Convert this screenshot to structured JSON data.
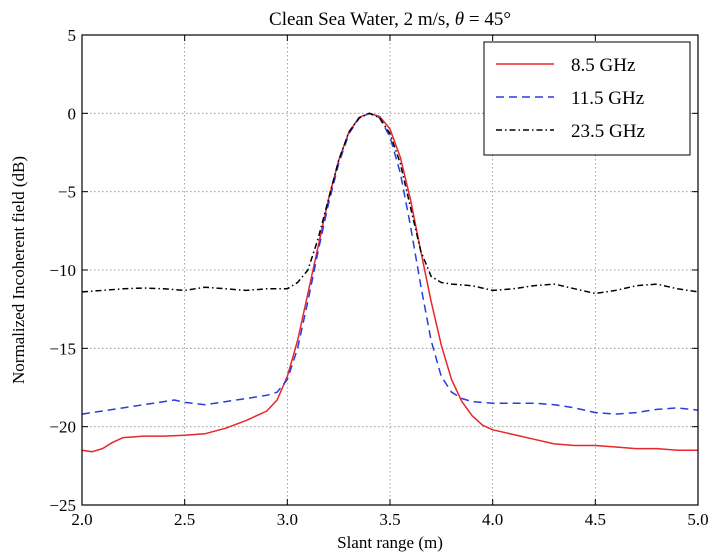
{
  "chart_data": {
    "type": "line",
    "title_prefix": "Clean Sea Water, 2 m/s, ",
    "title_symbol": "θ",
    "title_suffix": " = 45°",
    "xlabel": "Slant range (m)",
    "ylabel": "Normalized Incoherent field (dB)",
    "xlim": [
      2.0,
      5.0
    ],
    "ylim": [
      -25,
      5
    ],
    "xticks": [
      "2.0",
      "2.5",
      "3.0",
      "3.5",
      "4.0",
      "4.5",
      "5.0"
    ],
    "yticks": [
      "5",
      "0",
      "−5",
      "−10",
      "−15",
      "−20",
      "−25"
    ],
    "grid": true,
    "legend_position": "top-right",
    "series": [
      {
        "name": "8.5 GHz",
        "color": "#e8262b",
        "style": "solid",
        "points": [
          [
            2.0,
            -21.5
          ],
          [
            2.05,
            -21.6
          ],
          [
            2.1,
            -21.4
          ],
          [
            2.15,
            -21.0
          ],
          [
            2.2,
            -20.7
          ],
          [
            2.3,
            -20.6
          ],
          [
            2.4,
            -20.6
          ],
          [
            2.5,
            -20.55
          ],
          [
            2.6,
            -20.45
          ],
          [
            2.7,
            -20.1
          ],
          [
            2.8,
            -19.6
          ],
          [
            2.9,
            -19.0
          ],
          [
            2.95,
            -18.3
          ],
          [
            3.0,
            -16.8
          ],
          [
            3.05,
            -14.5
          ],
          [
            3.1,
            -11.5
          ],
          [
            3.15,
            -8.5
          ],
          [
            3.2,
            -5.5
          ],
          [
            3.25,
            -3.0
          ],
          [
            3.3,
            -1.2
          ],
          [
            3.35,
            -0.25
          ],
          [
            3.4,
            0.0
          ],
          [
            3.45,
            -0.2
          ],
          [
            3.5,
            -1.0
          ],
          [
            3.55,
            -2.8
          ],
          [
            3.6,
            -5.5
          ],
          [
            3.65,
            -8.8
          ],
          [
            3.7,
            -12.0
          ],
          [
            3.75,
            -14.8
          ],
          [
            3.8,
            -17.0
          ],
          [
            3.85,
            -18.4
          ],
          [
            3.9,
            -19.3
          ],
          [
            3.95,
            -19.9
          ],
          [
            4.0,
            -20.2
          ],
          [
            4.1,
            -20.5
          ],
          [
            4.2,
            -20.8
          ],
          [
            4.3,
            -21.1
          ],
          [
            4.4,
            -21.2
          ],
          [
            4.5,
            -21.2
          ],
          [
            4.6,
            -21.3
          ],
          [
            4.7,
            -21.4
          ],
          [
            4.8,
            -21.4
          ],
          [
            4.9,
            -21.5
          ],
          [
            5.0,
            -21.5
          ]
        ]
      },
      {
        "name": "11.5 GHz",
        "color": "#2a3cde",
        "style": "dashed",
        "points": [
          [
            2.0,
            -19.2
          ],
          [
            2.1,
            -19.0
          ],
          [
            2.2,
            -18.8
          ],
          [
            2.3,
            -18.6
          ],
          [
            2.4,
            -18.4
          ],
          [
            2.45,
            -18.3
          ],
          [
            2.5,
            -18.45
          ],
          [
            2.6,
            -18.6
          ],
          [
            2.7,
            -18.4
          ],
          [
            2.8,
            -18.2
          ],
          [
            2.9,
            -18.0
          ],
          [
            2.95,
            -17.8
          ],
          [
            3.0,
            -17.0
          ],
          [
            3.05,
            -15.0
          ],
          [
            3.1,
            -12.0
          ],
          [
            3.15,
            -8.8
          ],
          [
            3.2,
            -5.8
          ],
          [
            3.25,
            -3.2
          ],
          [
            3.3,
            -1.3
          ],
          [
            3.35,
            -0.3
          ],
          [
            3.4,
            0.0
          ],
          [
            3.45,
            -0.3
          ],
          [
            3.5,
            -1.5
          ],
          [
            3.55,
            -3.8
          ],
          [
            3.6,
            -7.2
          ],
          [
            3.65,
            -11.0
          ],
          [
            3.7,
            -14.5
          ],
          [
            3.75,
            -16.8
          ],
          [
            3.8,
            -17.8
          ],
          [
            3.85,
            -18.2
          ],
          [
            3.9,
            -18.4
          ],
          [
            4.0,
            -18.5
          ],
          [
            4.1,
            -18.5
          ],
          [
            4.2,
            -18.5
          ],
          [
            4.3,
            -18.6
          ],
          [
            4.4,
            -18.8
          ],
          [
            4.5,
            -19.1
          ],
          [
            4.6,
            -19.2
          ],
          [
            4.7,
            -19.1
          ],
          [
            4.8,
            -18.9
          ],
          [
            4.9,
            -18.8
          ],
          [
            5.0,
            -18.95
          ]
        ]
      },
      {
        "name": "23.5 GHz",
        "color": "#000000",
        "style": "dashdot",
        "points": [
          [
            2.0,
            -11.4
          ],
          [
            2.1,
            -11.3
          ],
          [
            2.2,
            -11.2
          ],
          [
            2.3,
            -11.15
          ],
          [
            2.4,
            -11.2
          ],
          [
            2.5,
            -11.3
          ],
          [
            2.6,
            -11.1
          ],
          [
            2.7,
            -11.2
          ],
          [
            2.8,
            -11.3
          ],
          [
            2.9,
            -11.2
          ],
          [
            3.0,
            -11.2
          ],
          [
            3.05,
            -10.8
          ],
          [
            3.1,
            -10.0
          ],
          [
            3.15,
            -8.0
          ],
          [
            3.2,
            -5.5
          ],
          [
            3.25,
            -3.0
          ],
          [
            3.3,
            -1.2
          ],
          [
            3.35,
            -0.3
          ],
          [
            3.4,
            0.0
          ],
          [
            3.45,
            -0.3
          ],
          [
            3.5,
            -1.3
          ],
          [
            3.55,
            -3.2
          ],
          [
            3.6,
            -6.0
          ],
          [
            3.65,
            -8.8
          ],
          [
            3.7,
            -10.4
          ],
          [
            3.75,
            -10.8
          ],
          [
            3.8,
            -10.9
          ],
          [
            3.9,
            -11.0
          ],
          [
            4.0,
            -11.3
          ],
          [
            4.1,
            -11.2
          ],
          [
            4.2,
            -11.0
          ],
          [
            4.3,
            -10.9
          ],
          [
            4.4,
            -11.2
          ],
          [
            4.5,
            -11.5
          ],
          [
            4.6,
            -11.3
          ],
          [
            4.7,
            -11.0
          ],
          [
            4.8,
            -10.9
          ],
          [
            4.9,
            -11.2
          ],
          [
            5.0,
            -11.4
          ]
        ]
      }
    ]
  }
}
